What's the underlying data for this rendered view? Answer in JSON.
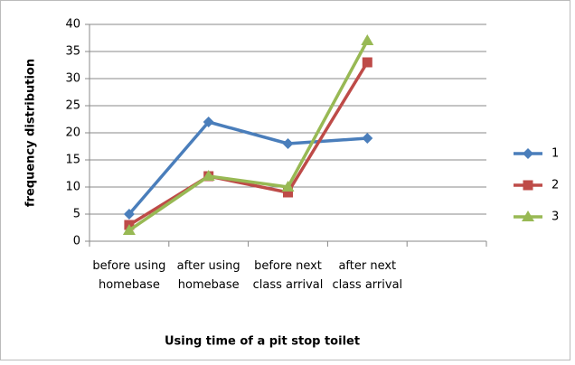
{
  "chart_data": {
    "type": "line",
    "xlabel": "Using time of a pit stop toilet",
    "ylabel": "frequency distribution",
    "categories": [
      "before using homebase",
      "after using homebase",
      "before next class arrival",
      "after next class arrival",
      null
    ],
    "series": [
      {
        "name": "1",
        "color": "#4a7ebb",
        "marker": "diamond",
        "values": [
          5,
          22,
          18,
          19,
          null
        ]
      },
      {
        "name": "2",
        "color": "#be4b48",
        "marker": "square",
        "values": [
          3,
          12,
          9,
          33,
          null
        ]
      },
      {
        "name": "3",
        "color": "#98b954",
        "marker": "triangle",
        "values": [
          2,
          12,
          10,
          37,
          null
        ]
      }
    ],
    "ylim": [
      0,
      40
    ],
    "yticks": [
      0,
      5,
      10,
      15,
      20,
      25,
      30,
      35,
      40
    ],
    "grid": true,
    "legend": "right"
  }
}
